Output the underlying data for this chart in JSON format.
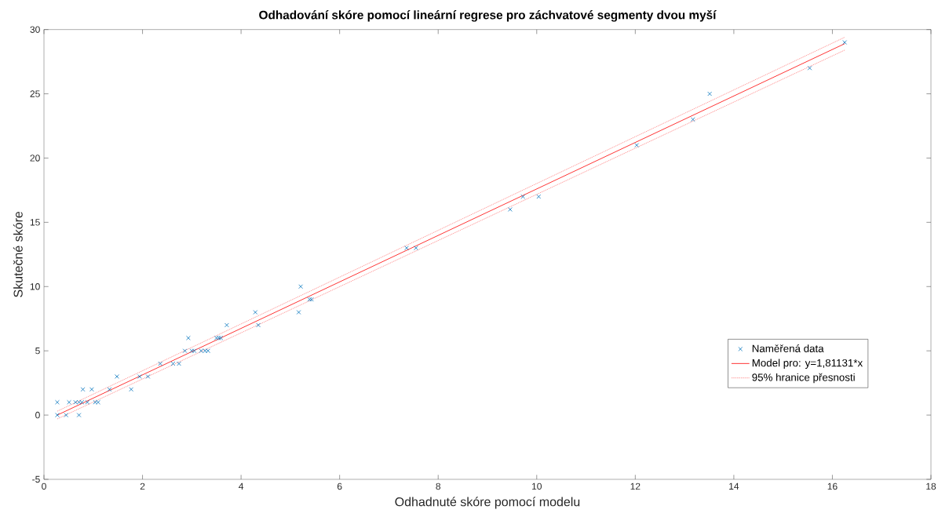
{
  "chart_data": {
    "type": "scatter",
    "title": "Odhadování skóre pomocí lineární regrese pro záchvatové segmenty dvou myší",
    "xlabel": "Odhadnuté skóre pomocí modelu",
    "ylabel": "Skutečné skóre",
    "xlim": [
      0,
      18
    ],
    "xticks": [
      0,
      2,
      4,
      6,
      8,
      10,
      12,
      14,
      16,
      18
    ],
    "ylim": [
      -5,
      30
    ],
    "yticks": [
      -5,
      0,
      5,
      10,
      15,
      20,
      25,
      30
    ],
    "grid": false,
    "legend": "bottom right",
    "series": [
      {
        "name": "Naměřená data",
        "marker": "cross",
        "color": "#0072bd",
        "x": [
          0.27,
          0.45,
          0.71,
          0.27,
          0.51,
          0.64,
          0.71,
          0.77,
          0.88,
          1.04,
          1.1,
          0.79,
          0.97,
          1.33,
          1.77,
          1.48,
          1.94,
          2.11,
          2.36,
          2.62,
          2.74,
          2.86,
          3.0,
          3.05,
          3.19,
          3.27,
          3.33,
          2.93,
          3.5,
          3.55,
          3.59,
          3.71,
          4.35,
          4.29,
          5.17,
          5.21,
          5.39,
          5.43,
          7.36,
          7.55,
          9.46,
          9.72,
          10.04,
          12.03,
          13.17,
          13.51,
          15.54,
          16.25
        ],
        "values": [
          0,
          0,
          0,
          1,
          1,
          1,
          1,
          1,
          1,
          1,
          1,
          2,
          2,
          2,
          2,
          3,
          3,
          3,
          4,
          4,
          4,
          5,
          5,
          5,
          5,
          5,
          5,
          6,
          6,
          6,
          6,
          7,
          7,
          8,
          8,
          10,
          9,
          9,
          13,
          13,
          16,
          17,
          17,
          21,
          23,
          25,
          27,
          29
        ]
      },
      {
        "name": "Model pro: y=1,81131*x",
        "type": "line",
        "marker": "none",
        "line_style": "solid",
        "color": "#ff0000",
        "x": [
          0.27,
          16.25
        ],
        "values": [
          0.0,
          28.9
        ]
      },
      {
        "name": "95% hranice přesnosti",
        "type": "line",
        "marker": "none",
        "line_style": "dotted",
        "color": "#ff8080",
        "x": [
          0.27,
          16.25
        ],
        "values": [
          0.3,
          29.4
        ]
      },
      {
        "type": "line",
        "marker": "none",
        "line_style": "dotted",
        "color": "#ff8080",
        "x": [
          0.27,
          16.25
        ],
        "values": [
          -0.3,
          28.4
        ]
      }
    ]
  }
}
